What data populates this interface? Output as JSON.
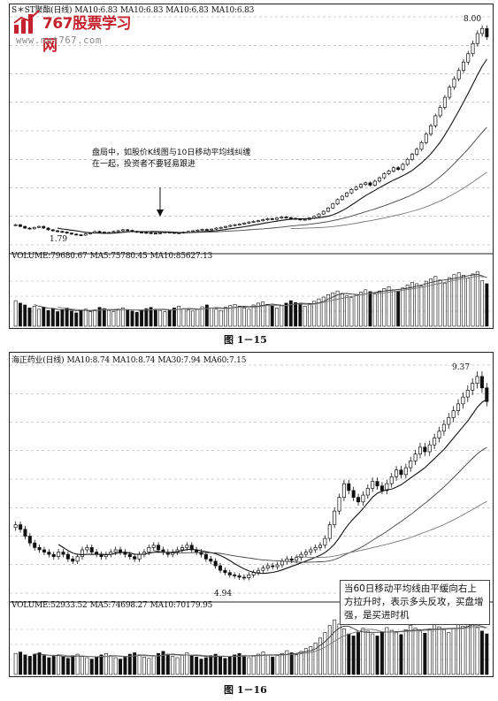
{
  "logo": {
    "brand": "767股票学习网",
    "url": "www.net767.com"
  },
  "chart_data": [
    {
      "type": "candlestick",
      "caption": "图 1－15",
      "header": [
        "S＊ST聚酯(日线)",
        "MA10:6.83",
        "MA10:6.83",
        "MA10:6.83",
        "MA10:6.83"
      ],
      "volume_header": [
        "VOLUME:79680.67",
        "MA5:75780.45",
        "MA10:85627.13"
      ],
      "high_label": "8.00",
      "low_label": "1.79",
      "annotation": "盘局中，如股价K线图与10日移动平均线纠缠在一起，投资者不要轻易跟进",
      "ylim": [
        1.5,
        8.3
      ],
      "close": [
        2.1,
        2.05,
        2.0,
        1.98,
        2.02,
        2.05,
        2.0,
        1.95,
        1.92,
        1.9,
        1.88,
        1.85,
        1.82,
        1.8,
        1.79,
        1.83,
        1.86,
        1.9,
        1.88,
        1.85,
        1.87,
        1.9,
        1.92,
        1.95,
        1.93,
        1.9,
        1.88,
        1.87,
        1.86,
        1.85,
        1.84,
        1.86,
        1.88,
        1.87,
        1.85,
        1.86,
        1.88,
        1.9,
        1.92,
        1.94,
        1.96,
        1.95,
        1.97,
        2.0,
        2.02,
        2.05,
        2.08,
        2.1,
        2.12,
        2.15,
        2.18,
        2.2,
        2.22,
        2.25,
        2.28,
        2.26,
        2.3,
        2.33,
        2.31,
        2.29,
        2.27,
        2.25,
        2.26,
        2.3,
        2.35,
        2.42,
        2.5,
        2.6,
        2.72,
        2.85,
        2.95,
        3.05,
        3.15,
        3.22,
        3.3,
        3.35,
        3.28,
        3.4,
        3.5,
        3.62,
        3.7,
        3.8,
        3.75,
        3.9,
        4.05,
        4.2,
        4.35,
        4.55,
        4.8,
        5.05,
        5.35,
        5.6,
        5.9,
        6.2,
        6.45,
        6.7,
        6.95,
        7.2,
        7.5,
        7.8,
        7.95,
        7.7
      ],
      "volume": [
        42,
        38,
        35,
        30,
        33,
        28,
        31,
        26,
        29,
        24,
        27,
        30,
        25,
        22,
        26,
        28,
        24,
        27,
        31,
        29,
        26,
        24,
        28,
        30,
        27,
        25,
        23,
        26,
        29,
        31,
        28,
        26,
        24,
        27,
        30,
        33,
        29,
        27,
        25,
        28,
        32,
        35,
        30,
        28,
        26,
        31,
        34,
        36,
        33,
        30,
        28,
        35,
        38,
        40,
        36,
        33,
        30,
        34,
        38,
        42,
        39,
        36,
        33,
        37,
        41,
        45,
        48,
        52,
        55,
        58,
        54,
        50,
        47,
        52,
        56,
        60,
        57,
        53,
        58,
        62,
        65,
        60,
        57,
        63,
        68,
        72,
        70,
        66,
        74,
        78,
        82,
        76,
        71,
        80,
        85,
        88,
        84,
        79,
        86,
        90,
        75,
        70
      ]
    },
    {
      "type": "candlestick",
      "caption": "图 1－16",
      "header": [
        "海正药业(日线)",
        "MA10:8.74",
        "MA10:8.74",
        "MA30:7.94",
        "MA60:7.15"
      ],
      "volume_header": [
        "VOLUME:52933.52",
        "MA5:74698.27",
        "MA10:70179.95"
      ],
      "high_label": "9.37",
      "low_label": "4.94",
      "annotation": "当60日移动平均线由平缓向右上方拉升时，表示多头反攻，买盘增强，是买进时机",
      "ylim": [
        4.6,
        9.6
      ],
      "close": [
        6.1,
        6.0,
        5.85,
        5.7,
        5.6,
        5.55,
        5.5,
        5.45,
        5.4,
        5.5,
        5.45,
        5.35,
        5.3,
        5.4,
        5.55,
        5.6,
        5.5,
        5.45,
        5.4,
        5.45,
        5.5,
        5.55,
        5.5,
        5.45,
        5.4,
        5.35,
        5.45,
        5.5,
        5.6,
        5.65,
        5.55,
        5.5,
        5.45,
        5.5,
        5.55,
        5.6,
        5.65,
        5.55,
        5.5,
        5.45,
        5.35,
        5.3,
        5.2,
        5.1,
        5.05,
        5.0,
        4.98,
        4.95,
        4.94,
        5.0,
        5.05,
        5.1,
        5.15,
        5.2,
        5.18,
        5.22,
        5.3,
        5.35,
        5.32,
        5.38,
        5.45,
        5.5,
        5.55,
        5.6,
        5.65,
        5.8,
        6.1,
        6.4,
        6.7,
        7.0,
        6.85,
        6.7,
        6.6,
        6.75,
        6.9,
        7.05,
        6.95,
        6.85,
        7.0,
        7.15,
        7.3,
        7.2,
        7.35,
        7.5,
        7.65,
        7.8,
        7.7,
        7.85,
        8.0,
        8.15,
        8.3,
        8.45,
        8.6,
        8.75,
        8.9,
        9.05,
        9.2,
        9.35,
        9.1,
        8.8
      ],
      "volume": [
        30,
        32,
        28,
        26,
        29,
        31,
        27,
        24,
        26,
        28,
        25,
        23,
        27,
        29,
        26,
        24,
        22,
        25,
        28,
        30,
        27,
        24,
        22,
        26,
        29,
        31,
        28,
        25,
        23,
        27,
        30,
        33,
        29,
        26,
        24,
        28,
        31,
        27,
        25,
        22,
        24,
        27,
        29,
        26,
        23,
        25,
        28,
        30,
        27,
        24,
        26,
        29,
        32,
        28,
        25,
        27,
        30,
        34,
        31,
        28,
        33,
        37,
        40,
        45,
        52,
        60,
        70,
        78,
        72,
        65,
        58,
        55,
        60,
        66,
        62,
        58,
        55,
        61,
        67,
        63,
        60,
        57,
        64,
        70,
        66,
        62,
        59,
        65,
        71,
        68,
        64,
        60,
        66,
        72,
        69,
        75,
        71,
        67,
        62,
        58
      ]
    }
  ]
}
